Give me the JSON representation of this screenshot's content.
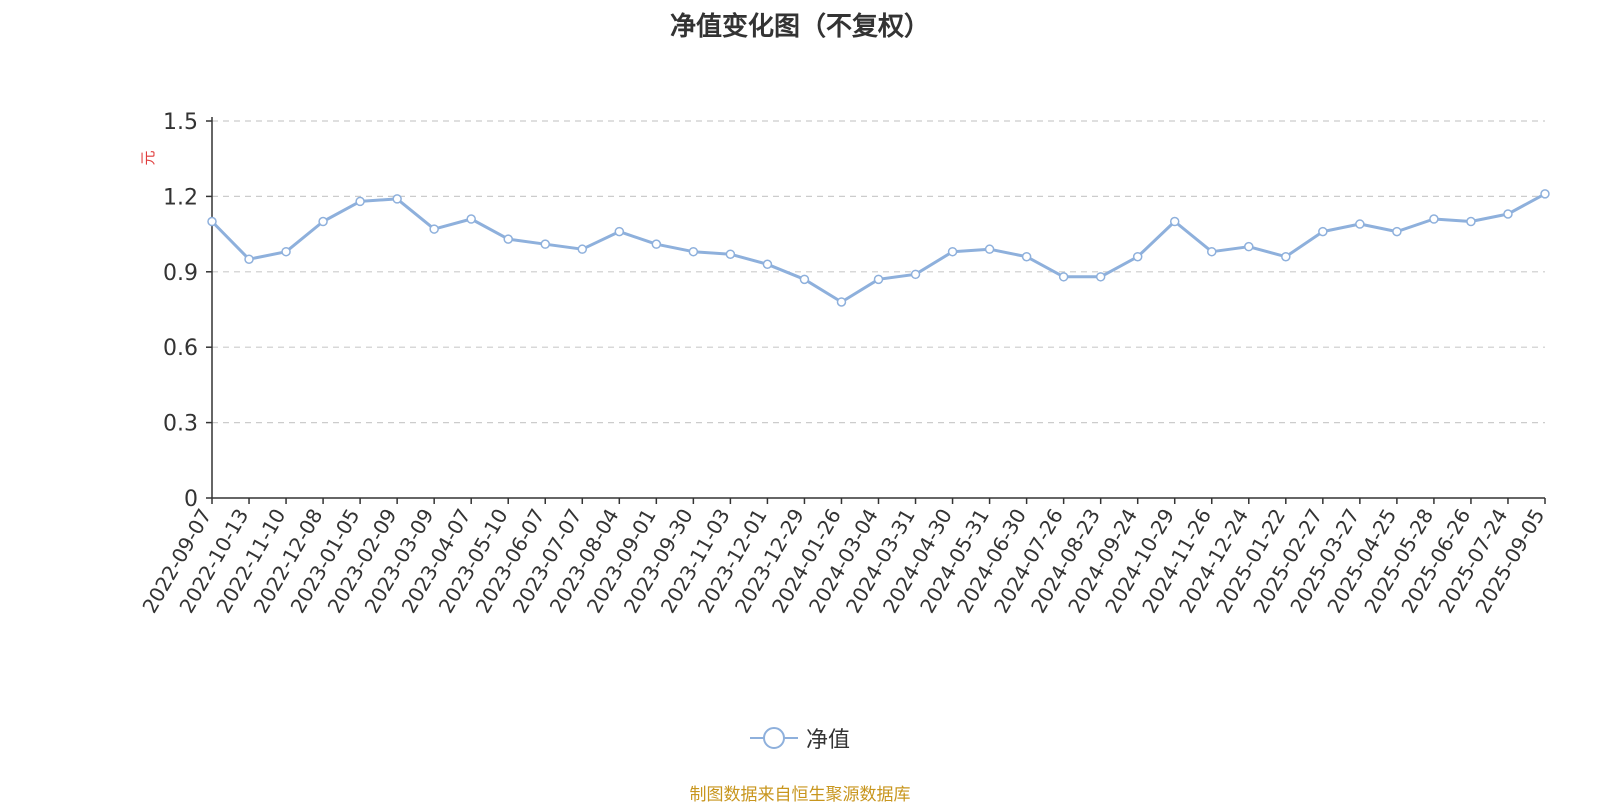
{
  "chart_data": {
    "type": "line",
    "title": "净值变化图（不复权）",
    "ylabel": "元",
    "ylim": [
      0,
      1.5
    ],
    "yticks": [
      "0",
      "0.3",
      "0.6",
      "0.9",
      "1.2",
      "1.5"
    ],
    "grid": true,
    "legend_position": "bottom-center",
    "colors": {
      "line": "#8eb0dc",
      "ylabel": "#e03c3c",
      "source": "#c8961e",
      "grid": "#cccccc",
      "axis": "#333333"
    },
    "x_tick_labels": [
      "2022-09-07",
      "2022-10-13",
      "2022-11-10",
      "2022-12-08",
      "2023-01-05",
      "2023-02-09",
      "2023-03-09",
      "2023-04-07",
      "2023-05-10",
      "2023-06-07",
      "2023-07-07",
      "2023-08-04",
      "2023-09-01",
      "2023-09-30",
      "2023-11-03",
      "2023-12-01",
      "2023-12-29",
      "2024-01-26",
      "2024-03-04",
      "2024-03-31",
      "2024-04-30",
      "2024-05-31",
      "2024-06-30",
      "2024-07-26",
      "2024-08-23",
      "2024-09-24",
      "2024-10-29",
      "2024-11-26",
      "2024-12-24",
      "2025-01-22",
      "2025-02-27",
      "2025-03-27",
      "2025-04-25",
      "2025-05-28",
      "2025-06-26",
      "2025-07-24",
      "2025-09-05"
    ],
    "series": [
      {
        "name": "净值",
        "x": [
          "2022-09-07",
          "2022-10-13",
          "2022-11-10",
          "2022-12-08",
          "2023-01-05",
          "2023-02-09",
          "2023-03-09",
          "2023-04-07",
          "2023-05-10",
          "2023-06-07",
          "2023-07-07",
          "2023-08-04",
          "2023-09-01",
          "2023-09-30",
          "2023-11-03",
          "2023-12-01",
          "2023-12-29",
          "2024-01-26",
          "2024-03-04",
          "2024-03-31",
          "2024-04-30",
          "2024-05-31",
          "2024-06-30",
          "2024-07-26",
          "2024-08-23",
          "2024-09-24",
          "2024-10-29",
          "2024-11-26",
          "2024-12-24",
          "2025-01-22",
          "2025-02-27",
          "2025-03-27",
          "2025-04-25",
          "2025-05-28",
          "2025-06-26",
          "2025-07-24",
          "2025-09-05"
        ],
        "values": [
          1.1,
          0.95,
          0.98,
          1.1,
          1.18,
          1.19,
          1.07,
          1.11,
          1.03,
          1.01,
          0.99,
          1.06,
          1.01,
          0.98,
          0.97,
          0.93,
          0.87,
          0.78,
          0.87,
          0.89,
          0.98,
          0.99,
          0.96,
          0.88,
          0.88,
          0.96,
          1.1,
          0.98,
          1.0,
          0.96,
          1.06,
          1.09,
          1.06,
          1.11,
          1.1,
          1.13,
          1.21
        ],
        "markers": [
          "2022-09-07",
          "2022-10-13",
          "2022-11-10",
          "2022-12-08",
          "2023-01-05",
          "2023-02-09",
          "2023-03-09",
          "2023-04-07",
          "2023-05-10",
          "2023-06-07",
          "2023-07-07",
          "2023-08-04",
          "2023-09-01",
          "2023-09-30",
          "2023-11-03",
          "2023-12-01",
          "2023-12-29",
          "2024-01-26",
          "2024-03-04",
          "2024-03-31",
          "2024-04-30",
          "2024-05-31",
          "2024-06-30",
          "2024-07-26",
          "2024-08-23",
          "2024-09-24",
          "2024-10-29",
          "2024-11-26",
          "2024-12-24",
          "2025-01-22",
          "2025-02-27",
          "2025-03-27",
          "2025-04-25",
          "2025-05-28",
          "2025-06-26",
          "2025-07-24",
          "2025-09-05"
        ]
      }
    ]
  },
  "legend": {
    "label": "净值"
  },
  "source_note": "制图数据来自恒生聚源数据库"
}
